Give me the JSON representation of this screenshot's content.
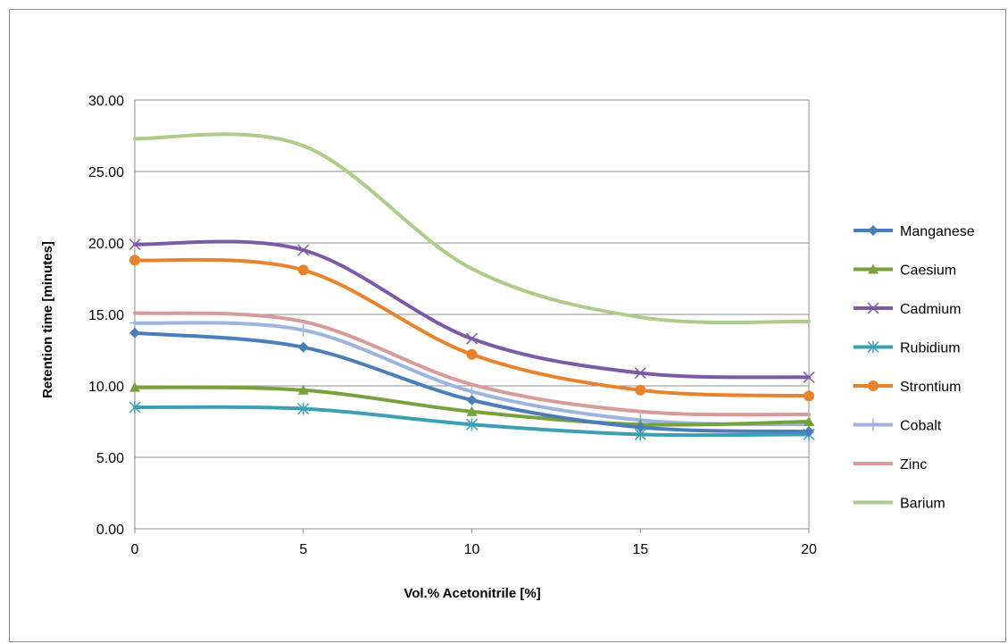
{
  "chart_data": {
    "type": "line",
    "smooth": true,
    "x": [
      0,
      5,
      10,
      15,
      20
    ],
    "xlabel": "Vol.% Acetonitrile  [%]",
    "ylabel": "Retention time [minutes]",
    "xlim": [
      0,
      20
    ],
    "ylim": [
      0,
      30
    ],
    "x_ticks": [
      "0",
      "5",
      "10",
      "15",
      "20"
    ],
    "y_ticks": [
      "0.00",
      "5.00",
      "10.00",
      "15.00",
      "20.00",
      "25.00",
      "30.00"
    ],
    "grid": "horizontal",
    "legend_position": "right",
    "series": [
      {
        "name": "Manganese",
        "values": [
          13.7,
          12.7,
          9.0,
          7.1,
          6.8
        ],
        "color": "#4a7ebb",
        "marker": "diamond"
      },
      {
        "name": "Caesium",
        "values": [
          9.9,
          9.7,
          8.2,
          7.3,
          7.5
        ],
        "color": "#77a23b",
        "marker": "triangle"
      },
      {
        "name": "Cadmium",
        "values": [
          19.9,
          19.5,
          13.3,
          10.9,
          10.6
        ],
        "color": "#7b5aa6",
        "marker": "x"
      },
      {
        "name": "Rubidium",
        "values": [
          8.5,
          8.4,
          7.3,
          6.6,
          6.6
        ],
        "color": "#3d9fb3",
        "marker": "star"
      },
      {
        "name": "Strontium",
        "values": [
          18.8,
          18.1,
          12.2,
          9.7,
          9.3
        ],
        "color": "#e9822d",
        "marker": "circle"
      },
      {
        "name": "Cobalt",
        "values": [
          14.4,
          13.9,
          9.6,
          7.6,
          7.3
        ],
        "color": "#9db4de",
        "marker": "plus"
      },
      {
        "name": "Zinc",
        "values": [
          15.1,
          14.5,
          10.1,
          8.2,
          8.0
        ],
        "color": "#d99a9a",
        "marker": "none"
      },
      {
        "name": "Barium",
        "values": [
          27.3,
          26.8,
          18.2,
          14.8,
          14.5
        ],
        "color": "#aecb88",
        "marker": "none"
      }
    ]
  }
}
